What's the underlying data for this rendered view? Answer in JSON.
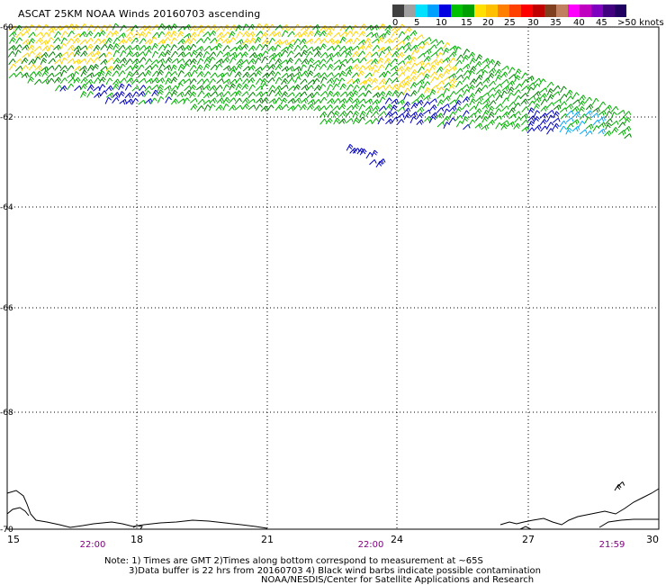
{
  "title": "ASCAT 25KM NOAA Winds 20160703 ascending",
  "scale": {
    "colors": [
      "#404040",
      "#a0a0a0",
      "#00e0ff",
      "#00a0ff",
      "#0000e0",
      "#00c000",
      "#00a000",
      "#ffe000",
      "#ffc000",
      "#ff8000",
      "#ff4000",
      "#ff0000",
      "#c00000",
      "#804020",
      "#c08060",
      "#ff00ff",
      "#c000c0",
      "#8000c0",
      "#400080",
      "#200060"
    ],
    "labels": [
      "0",
      "5",
      "10",
      "15",
      "20",
      "25",
      "30",
      "35",
      "40",
      "45",
      ">50 knots"
    ]
  },
  "axes": {
    "lat_labels": [
      "-60",
      "-62",
      "-64",
      "-66",
      "-68",
      "-70"
    ],
    "lon_labels": [
      "15",
      "18",
      "21",
      "24",
      "27",
      "30"
    ],
    "time_labels": [
      "22:00",
      "22:00",
      "21:59"
    ]
  },
  "notes": {
    "line1": "Note: 1) Times are GMT 2)Times along bottom correspond to measurement at ~65S",
    "line2": "3)Data buffer is 22 hrs from 20160703 4) Black wind barbs indicate possible contamination",
    "line3": "NOAA/NESDIS/Center for Satellite Applications and Research"
  },
  "colors": {
    "yellow": "#ffd400",
    "green": "#00b000",
    "dark_green": "#008000",
    "blue": "#0000c0",
    "cyan": "#00a8ff",
    "time_label": "#800080",
    "grid": "#000000"
  }
}
